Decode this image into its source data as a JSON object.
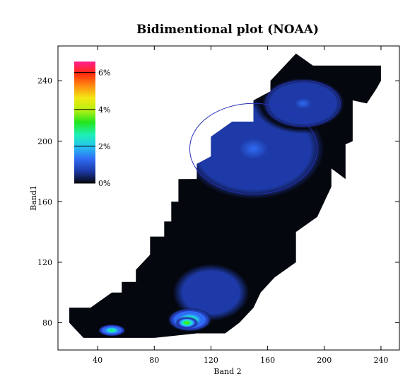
{
  "chart_data": {
    "type": "heatmap",
    "title": "Bidimentional plot (NOAA)",
    "xlabel": "Band 2",
    "ylabel": "Band1",
    "xlim": [
      12,
      253
    ],
    "ylim": [
      62,
      263
    ],
    "x_ticks": [
      40,
      80,
      120,
      160,
      200,
      240
    ],
    "y_ticks": [
      80,
      120,
      160,
      200,
      240
    ],
    "colorbar": {
      "labels": [
        "6%",
        "4%",
        "2%",
        "0%"
      ],
      "values": [
        6,
        4,
        2,
        0
      ],
      "range": [
        0,
        6.6
      ],
      "placement": "top-left",
      "colors": [
        "#05070f",
        "#1d3aa8",
        "#2f6cf4",
        "#25c3f0",
        "#1ef0b4",
        "#22e51e",
        "#b6f012",
        "#f2e812",
        "#ff8c12",
        "#ff2a0a",
        "#ff1f8f"
      ]
    },
    "density_region": [
      [
        20,
        90
      ],
      [
        35,
        90
      ],
      [
        50,
        100
      ],
      [
        57,
        100
      ],
      [
        57,
        107
      ],
      [
        67,
        107
      ],
      [
        67,
        115
      ],
      [
        77,
        125
      ],
      [
        77,
        137
      ],
      [
        87,
        137
      ],
      [
        87,
        147
      ],
      [
        92,
        147
      ],
      [
        92,
        160
      ],
      [
        97,
        160
      ],
      [
        97,
        175
      ],
      [
        110,
        175
      ],
      [
        110,
        185
      ],
      [
        120,
        190
      ],
      [
        120,
        203
      ],
      [
        135,
        213
      ],
      [
        150,
        213
      ],
      [
        150,
        227
      ],
      [
        162,
        233
      ],
      [
        162,
        240
      ],
      [
        180,
        258
      ],
      [
        192,
        250
      ],
      [
        240,
        250
      ],
      [
        240,
        240
      ],
      [
        237,
        235
      ],
      [
        230,
        225
      ],
      [
        220,
        227
      ],
      [
        220,
        200
      ],
      [
        215,
        198
      ],
      [
        215,
        175
      ],
      [
        205,
        182
      ],
      [
        205,
        170
      ],
      [
        195,
        150
      ],
      [
        180,
        140
      ],
      [
        180,
        120
      ],
      [
        165,
        110
      ],
      [
        155,
        100
      ],
      [
        150,
        90
      ],
      [
        140,
        80
      ],
      [
        130,
        73
      ],
      [
        110,
        73
      ],
      [
        80,
        70
      ],
      [
        30,
        70
      ],
      [
        25,
        75
      ],
      [
        20,
        80
      ]
    ],
    "blobs": [
      {
        "x": 120,
        "y": 100,
        "rx": 40,
        "ry": 28,
        "value": 0.9
      },
      {
        "x": 150,
        "y": 195,
        "rx": 60,
        "ry": 40,
        "value": 1.0
      },
      {
        "x": 185,
        "y": 225,
        "rx": 35,
        "ry": 20,
        "value": 1.0
      },
      {
        "x": 105,
        "y": 82,
        "rx": 16,
        "ry": 8,
        "value": 3.2
      },
      {
        "x": 103,
        "y": 80,
        "rx": 8,
        "ry": 4,
        "value": 3.8
      },
      {
        "x": 50,
        "y": 75,
        "rx": 10,
        "ry": 4,
        "value": 3.0
      }
    ]
  }
}
